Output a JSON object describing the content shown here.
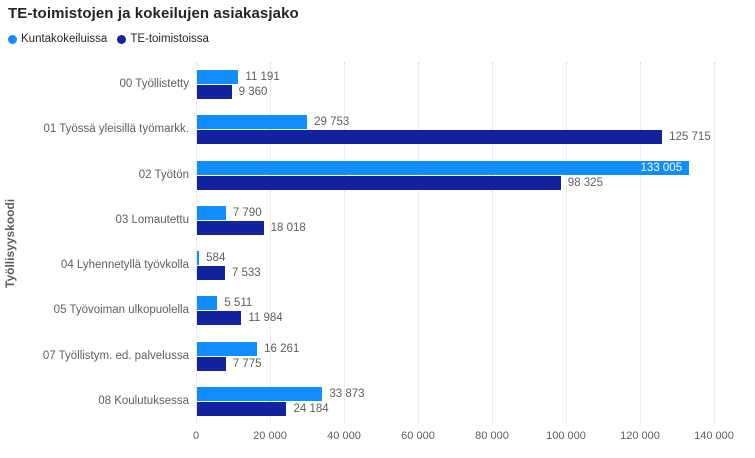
{
  "title": "TE-toimistojen ja kokeilujen asiakasjako",
  "legend": [
    {
      "label": "Kuntakokeiluissa",
      "color": "#118DFF"
    },
    {
      "label": "TE-toimistoissa",
      "color": "#12239E"
    }
  ],
  "chart_data": {
    "type": "bar",
    "orientation": "horizontal",
    "title": "TE-toimistojen ja kokeilujen asiakasjako",
    "ylabel": "Työllisyyskoodi",
    "xlabel": "",
    "categories": [
      "00 Työllistetty",
      "01 Työssä yleisillä työmarkk.",
      "02 Työtön",
      "03 Lomautettu",
      "04 Lyhennetyllä työvkolla",
      "05 Työvoiman ulkopuolella",
      "07 Työllistym. ed. palvelussa",
      "08 Koulutuksessa"
    ],
    "series": [
      {
        "name": "Kuntakokeiluissa",
        "color": "#118DFF",
        "values": [
          11191,
          29753,
          133005,
          7790,
          584,
          5511,
          16261,
          33873
        ]
      },
      {
        "name": "TE-toimistoissa",
        "color": "#12239E",
        "values": [
          9360,
          125715,
          98325,
          18018,
          7533,
          11984,
          7775,
          24184
        ]
      }
    ],
    "xlim": [
      0,
      140000
    ],
    "xticks": [
      0,
      20000,
      40000,
      60000,
      80000,
      100000,
      120000,
      140000
    ],
    "xtick_labels": [
      "0",
      "20 000",
      "40 000",
      "60 000",
      "80 000",
      "100 000",
      "120 000",
      "140 000"
    ],
    "grid": "vertical-dotted",
    "legend_position": "top-left",
    "value_labels": true
  }
}
